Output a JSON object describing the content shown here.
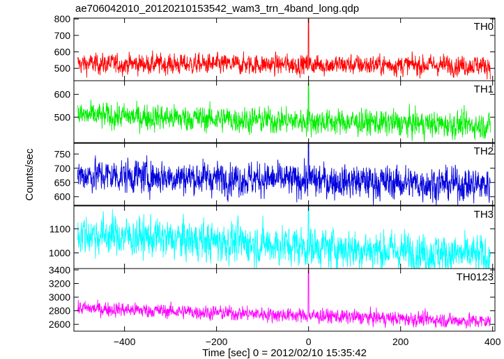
{
  "chart_data": {
    "type": "line",
    "title": "ae706042010_20120210153542_wam3_trn_4band_long.qdp",
    "xlabel": "Time [sec] 0 = 2012/02/10 15:35:42",
    "ylabel": "Counts/sec",
    "xlim": [
      -510,
      405
    ],
    "xticks": [
      -400,
      -200,
      0,
      200,
      400
    ],
    "grid": false,
    "panels": [
      {
        "name": "TH0",
        "color": "#ff0000",
        "ylim": [
          425,
          805
        ],
        "yticks": [
          500,
          600,
          700,
          800
        ],
        "level_start": 528,
        "level_end": 518,
        "noise": 28,
        "spike_peak": 800
      },
      {
        "name": "TH1",
        "color": "#00ee00",
        "ylim": [
          385,
          660
        ],
        "yticks": [
          500,
          600
        ],
        "level_start": 508,
        "level_end": 462,
        "noise": 26,
        "spike_peak": 650
      },
      {
        "name": "TH2",
        "color": "#0000dd",
        "ylim": [
          570,
          790
        ],
        "yticks": [
          600,
          650,
          700,
          750
        ],
        "level_start": 678,
        "level_end": 641,
        "noise": 27,
        "spike_peak": 790
      },
      {
        "name": "TH3",
        "color": "#00ffff",
        "ylim": [
          935,
          1195
        ],
        "yticks": [
          1000,
          1100
        ],
        "level_start": 1080,
        "level_end": 985,
        "noise": 38,
        "spike_peak": 1195
      },
      {
        "name": "TH0123",
        "color": "#ff00ff",
        "ylim": [
          2500,
          3420
        ],
        "yticks": [
          2600,
          2800,
          3000,
          3200,
          3400
        ],
        "level_start": 2840,
        "level_end": 2640,
        "noise": 48,
        "spike_peak": 3400
      }
    ]
  }
}
